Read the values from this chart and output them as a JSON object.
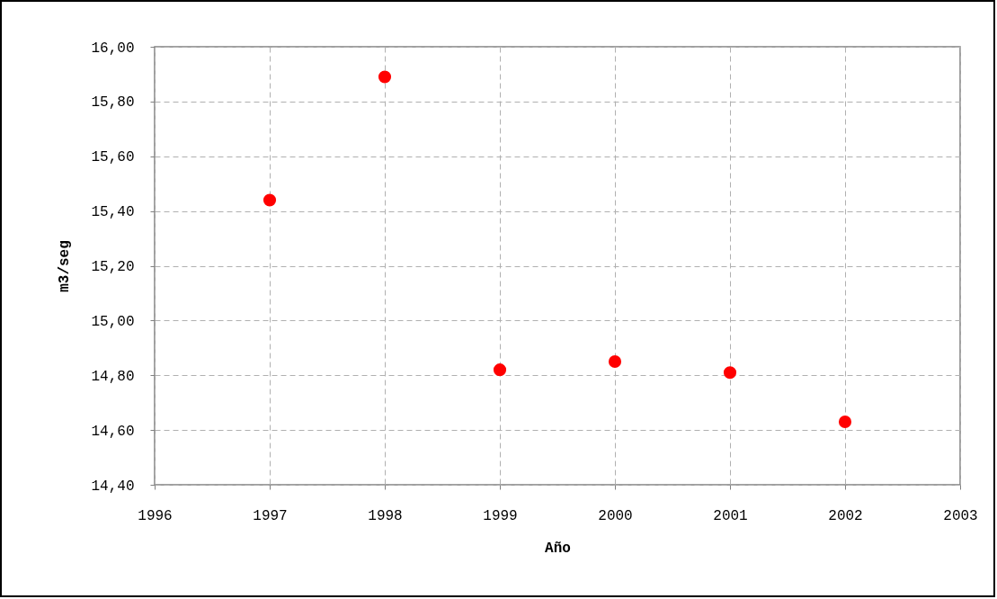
{
  "chart_data": {
    "type": "scatter",
    "xlabel": "Año",
    "ylabel": "m3/seg",
    "x": [
      1997,
      1998,
      1999,
      2000,
      2001,
      2002
    ],
    "series": [
      {
        "color": "#ff0000",
        "values": [
          15.44,
          15.89,
          14.82,
          14.85,
          14.81,
          14.63
        ]
      }
    ],
    "xlim": [
      1996,
      2003
    ],
    "xticks": [
      1996,
      1997,
      1998,
      1999,
      2000,
      2001,
      2002,
      2003
    ],
    "ylim": [
      14.4,
      16.0
    ],
    "yticks": [
      {
        "value": 14.4,
        "label": "14,40"
      },
      {
        "value": 14.6,
        "label": "14,60"
      },
      {
        "value": 14.8,
        "label": "14,80"
      },
      {
        "value": 15.0,
        "label": "15,00"
      },
      {
        "value": 15.2,
        "label": "15,20"
      },
      {
        "value": 15.4,
        "label": "15,40"
      },
      {
        "value": 15.6,
        "label": "15,60"
      },
      {
        "value": 15.8,
        "label": "15,80"
      },
      {
        "value": 16.0,
        "label": "16,00"
      }
    ],
    "grid": true,
    "marker": "circle",
    "legend": false
  }
}
